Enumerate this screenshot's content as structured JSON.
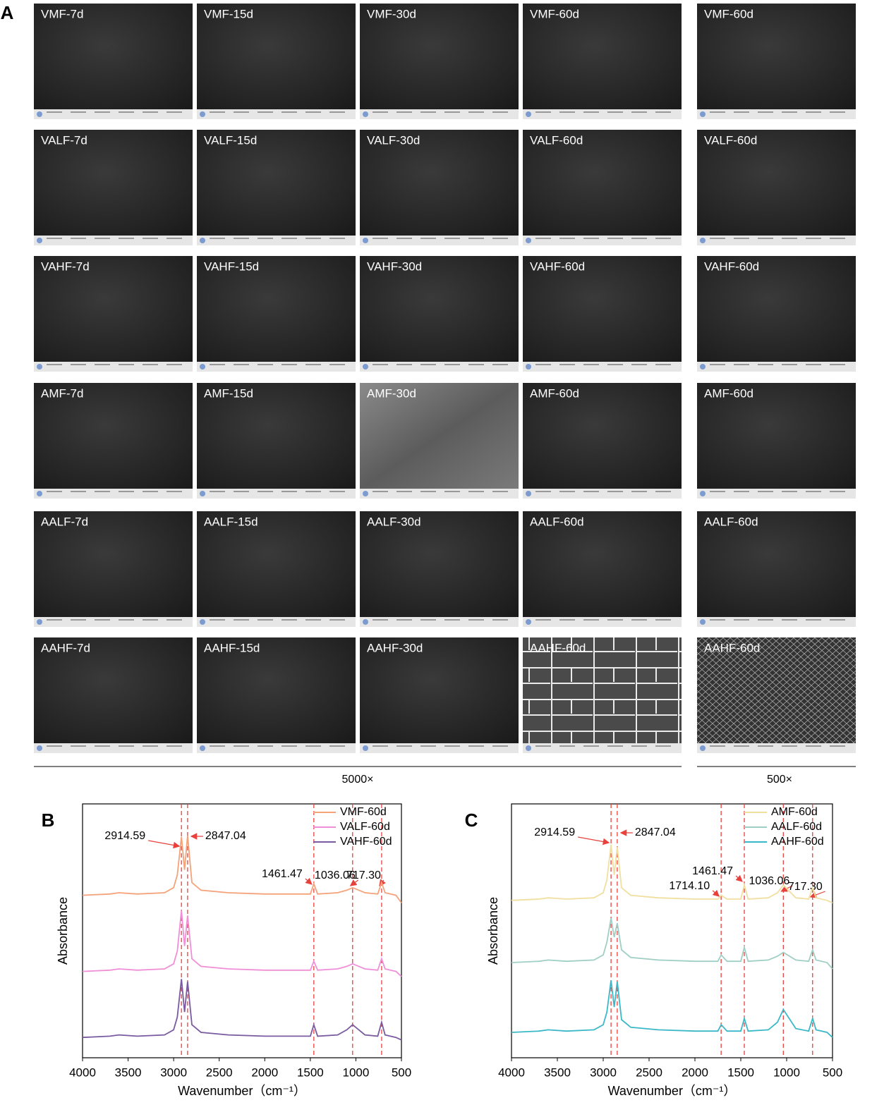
{
  "figure": {
    "panel_labels": [
      "A",
      "B",
      "C"
    ]
  },
  "sem": {
    "panels": [
      [
        "VMF-7d",
        "VMF-15d",
        "VMF-30d",
        "VMF-60d",
        "VMF-60d"
      ],
      [
        "VALF-7d",
        "VALF-15d",
        "VALF-30d",
        "VALF-60d",
        "VALF-60d"
      ],
      [
        "VAHF-7d",
        "VAHF-15d",
        "VAHF-30d",
        "VAHF-60d",
        "VAHF-60d"
      ],
      [
        "AMF-7d",
        "AMF-15d",
        "AMF-30d",
        "AMF-60d",
        "AMF-60d"
      ],
      [
        "AALF-7d",
        "AALF-15d",
        "AALF-30d",
        "AALF-60d",
        "AALF-60d"
      ],
      [
        "AAHF-7d",
        "AAHF-15d",
        "AAHF-30d",
        "AAHF-60d",
        "AAHF-60d"
      ]
    ],
    "scale_labels": [
      "5000×",
      "500×"
    ]
  },
  "chart_data": [
    {
      "type": "line",
      "xlabel": "Wavenumber（cm⁻¹）",
      "ylabel": "Absorbance",
      "xlim": [
        4000,
        500
      ],
      "ylim": [
        0,
        10
      ],
      "xticks": [
        4000,
        3500,
        3000,
        2500,
        2000,
        1500,
        1000,
        500
      ],
      "legend": "upper right",
      "annotation_color": "#e8413c",
      "annotations": [
        {
          "value": 2914.59,
          "label": "2914.59"
        },
        {
          "value": 2847.04,
          "label": "2847.04"
        },
        {
          "value": 1461.47,
          "label": "1461.47"
        },
        {
          "value": 1036.06,
          "label": "1036.06"
        },
        {
          "value": 717.3,
          "label": "717.30"
        }
      ],
      "x": [
        4000,
        3700,
        3600,
        3400,
        3100,
        3000,
        2960,
        2914.59,
        2880,
        2847.04,
        2800,
        2700,
        2400,
        2000,
        1750,
        1714.1,
        1650,
        1500,
        1461.47,
        1420,
        1200,
        1100,
        1036.06,
        900,
        760,
        717.3,
        680,
        560,
        500
      ],
      "series": [
        {
          "name": "VMF-60d",
          "color": "#f5a27a",
          "values": [
            6.4,
            6.45,
            6.5,
            6.45,
            6.5,
            6.7,
            7.2,
            8.7,
            7.4,
            8.75,
            6.9,
            6.6,
            6.5,
            6.45,
            6.45,
            6.45,
            6.45,
            6.45,
            6.85,
            6.45,
            6.5,
            6.6,
            6.7,
            6.5,
            6.45,
            6.9,
            6.5,
            6.4,
            6.1
          ]
        },
        {
          "name": "VALF-60d",
          "color": "#f08fd8",
          "values": [
            3.4,
            3.45,
            3.5,
            3.45,
            3.5,
            3.7,
            4.2,
            5.8,
            4.4,
            5.6,
            3.9,
            3.6,
            3.5,
            3.45,
            3.45,
            3.45,
            3.45,
            3.45,
            3.8,
            3.45,
            3.5,
            3.6,
            3.7,
            3.5,
            3.45,
            3.9,
            3.5,
            3.4,
            3.2
          ]
        },
        {
          "name": "VAHF-60d",
          "color": "#7a5aa0",
          "values": [
            0.8,
            0.85,
            0.9,
            0.85,
            0.9,
            1.1,
            1.6,
            3.1,
            1.8,
            3.0,
            1.3,
            1.0,
            0.9,
            0.85,
            0.85,
            0.85,
            0.85,
            0.85,
            1.3,
            0.85,
            0.9,
            1.1,
            1.3,
            0.9,
            0.85,
            1.4,
            0.9,
            0.8,
            0.7
          ]
        }
      ]
    },
    {
      "type": "line",
      "xlabel": "Wavenumber（cm⁻¹）",
      "ylabel": "Absorbance",
      "xlim": [
        4000,
        500
      ],
      "ylim": [
        0,
        10
      ],
      "xticks": [
        4000,
        3500,
        3000,
        2500,
        2000,
        1500,
        1000,
        500
      ],
      "legend": "upper right",
      "annotation_color": "#e8413c",
      "annotations": [
        {
          "value": 2914.59,
          "label": "2914.59"
        },
        {
          "value": 2847.04,
          "label": "2847.04"
        },
        {
          "value": 1714.1,
          "label": "1714.10"
        },
        {
          "value": 1461.47,
          "label": "1461.47"
        },
        {
          "value": 1036.06,
          "label": "1036.06"
        },
        {
          "value": 717.3,
          "label": "717.30"
        }
      ],
      "x": [
        4000,
        3700,
        3600,
        3400,
        3100,
        3000,
        2960,
        2914.59,
        2880,
        2847.04,
        2800,
        2700,
        2400,
        2000,
        1750,
        1714.1,
        1650,
        1500,
        1461.47,
        1420,
        1200,
        1100,
        1036.06,
        900,
        760,
        717.3,
        680,
        560,
        500
      ],
      "series": [
        {
          "name": "AMF-60d",
          "color": "#f0dfa0",
          "values": [
            6.2,
            6.25,
            6.3,
            6.25,
            6.3,
            6.5,
            7.0,
            8.4,
            7.2,
            8.3,
            6.7,
            6.4,
            6.3,
            6.25,
            6.25,
            6.4,
            6.25,
            6.25,
            6.8,
            6.25,
            6.3,
            6.5,
            6.8,
            6.3,
            6.25,
            6.7,
            6.3,
            6.2,
            6.1
          ]
        },
        {
          "name": "AALF-60d",
          "color": "#9fcfc4",
          "values": [
            3.75,
            3.8,
            3.85,
            3.8,
            3.85,
            4.05,
            4.55,
            5.5,
            4.75,
            5.3,
            4.25,
            3.95,
            3.85,
            3.8,
            3.8,
            4.05,
            3.8,
            3.8,
            4.35,
            3.8,
            3.85,
            4.0,
            4.15,
            3.85,
            3.8,
            4.25,
            3.85,
            3.75,
            3.5
          ]
        },
        {
          "name": "AAHF-60d",
          "color": "#3bb8c8",
          "values": [
            1.0,
            1.05,
            1.1,
            1.05,
            1.1,
            1.3,
            1.8,
            3.05,
            2.0,
            3.0,
            1.5,
            1.2,
            1.1,
            1.05,
            1.05,
            1.3,
            1.05,
            1.05,
            1.55,
            1.05,
            1.1,
            1.4,
            1.9,
            1.15,
            1.05,
            1.55,
            1.1,
            1.0,
            0.8
          ]
        }
      ]
    }
  ]
}
